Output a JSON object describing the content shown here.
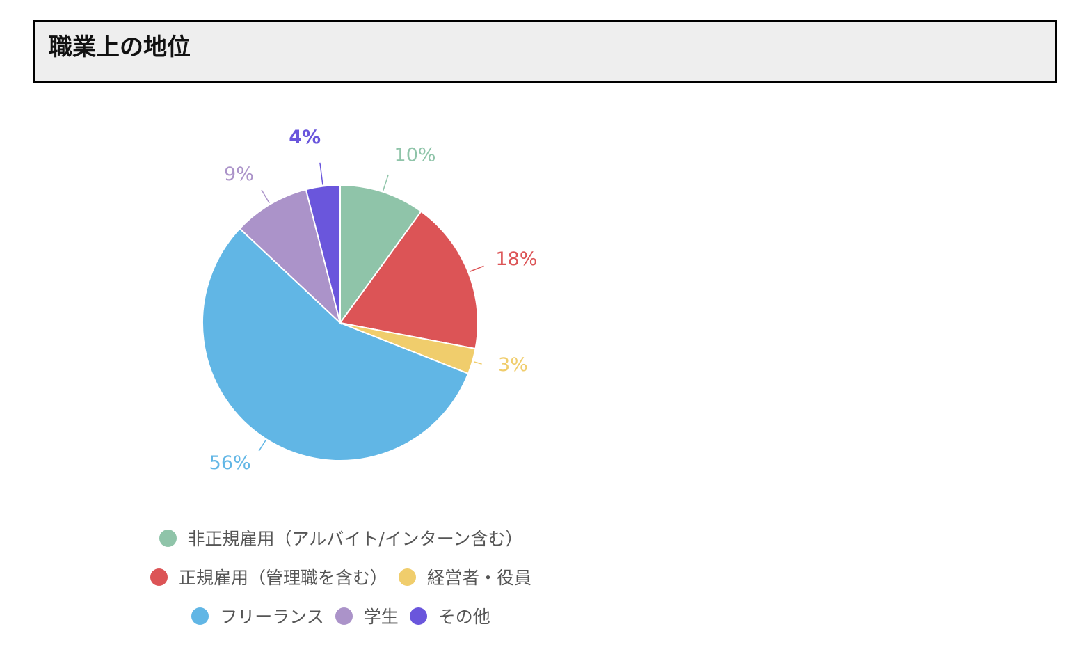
{
  "header": {
    "title": "職業上の地位"
  },
  "chart_data": {
    "type": "pie",
    "title": "職業上の地位",
    "start_angle_deg": 0,
    "direction": "clockwise",
    "legend_position": "bottom",
    "categories": [
      "非正規雇用（アルバイト/インターン含む）",
      "正規雇用（管理職を含む）",
      "経営者・役員",
      "フリーランス",
      "学生",
      "その他"
    ],
    "values": [
      10,
      18,
      3,
      56,
      9,
      4
    ],
    "labels": [
      "10%",
      "18%",
      "3%",
      "56%",
      "9%",
      "4%"
    ],
    "colors": [
      "#8fc4a9",
      "#dc5456",
      "#f0cd6c",
      "#61b6e5",
      "#ab93c9",
      "#6a56dc"
    ]
  },
  "legend": {
    "rows": [
      [
        {
          "label": "非正規雇用（アルバイト/インターン含む）",
          "color": "#8fc4a9"
        }
      ],
      [
        {
          "label": "正規雇用（管理職を含む）",
          "color": "#dc5456"
        },
        {
          "label": "経営者・役員",
          "color": "#f0cd6c"
        }
      ],
      [
        {
          "label": "フリーランス",
          "color": "#61b6e5"
        },
        {
          "label": "学生",
          "color": "#ab93c9"
        },
        {
          "label": "その他",
          "color": "#6a56dc"
        }
      ]
    ]
  }
}
